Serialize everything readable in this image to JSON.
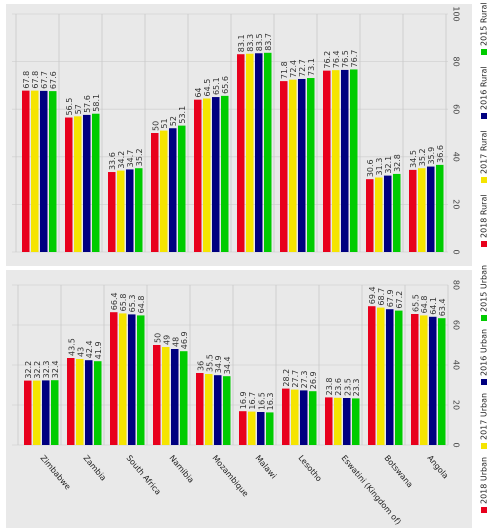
{
  "chart_data": [
    {
      "type": "bar",
      "orientation": "horizontal",
      "title": "",
      "xlabel": "",
      "ylabel": "",
      "xlim": [
        0,
        100
      ],
      "ticks": [
        0,
        20,
        40,
        60,
        80,
        100
      ],
      "grid": true,
      "legend": "right",
      "categories": [
        "Zimbabwe",
        "Zambia",
        "South Africa",
        "Namibia",
        "Mozambique",
        "Malawi",
        "Lesotho",
        "Eswatini (Kingdom of)",
        "Botswana",
        "Angola"
      ],
      "series": [
        {
          "name": "2018 Rural",
          "color": "#e8001c",
          "values": [
            67.8,
            56.5,
            33.6,
            50,
            64,
            83.1,
            71.8,
            76.2,
            30.6,
            34.5
          ]
        },
        {
          "name": "2017 Rural",
          "color": "#f5e400",
          "values": [
            67.8,
            57,
            34.2,
            51,
            64.5,
            83.3,
            72.4,
            76.4,
            31.3,
            35.2
          ]
        },
        {
          "name": "2016 Rural",
          "color": "#000080",
          "values": [
            67.7,
            57.6,
            34.7,
            52,
            65.1,
            83.5,
            72.7,
            76.5,
            32.1,
            35.9
          ]
        },
        {
          "name": "2015 Rural",
          "color": "#00cc00",
          "values": [
            67.6,
            58.1,
            35.2,
            53.1,
            65.6,
            83.7,
            73.1,
            76.7,
            32.8,
            36.6
          ]
        }
      ]
    },
    {
      "type": "bar",
      "orientation": "horizontal",
      "title": "",
      "xlabel": "",
      "ylabel": "",
      "xlim": [
        0,
        80
      ],
      "ticks": [
        0,
        20,
        40,
        60,
        80
      ],
      "grid": true,
      "legend": "right",
      "categories": [
        "Zimbabwe",
        "Zambia",
        "South Africa",
        "Namibia",
        "Mozambique",
        "Malawi",
        "Lesotho",
        "Eswatini (Kingdom of)",
        "Botswana",
        "Angola"
      ],
      "series": [
        {
          "name": "2018 Urban",
          "color": "#e8001c",
          "values": [
            32.2,
            43.5,
            66.4,
            50,
            36,
            16.9,
            28.2,
            23.8,
            69.4,
            65.5
          ]
        },
        {
          "name": "2017 Urban",
          "color": "#f5e400",
          "values": [
            32.2,
            43,
            65.8,
            49,
            35.5,
            16.7,
            27.7,
            23.6,
            68.7,
            64.8
          ]
        },
        {
          "name": "2016 Urban",
          "color": "#000080",
          "values": [
            32.3,
            42.4,
            65.3,
            48,
            34.9,
            16.5,
            27.3,
            23.5,
            67.9,
            64.1
          ]
        },
        {
          "name": "2015 Urban",
          "color": "#00cc00",
          "values": [
            32.4,
            41.9,
            64.8,
            46.9,
            34.4,
            16.3,
            26.9,
            23.3,
            67.2,
            63.4
          ]
        }
      ]
    }
  ]
}
